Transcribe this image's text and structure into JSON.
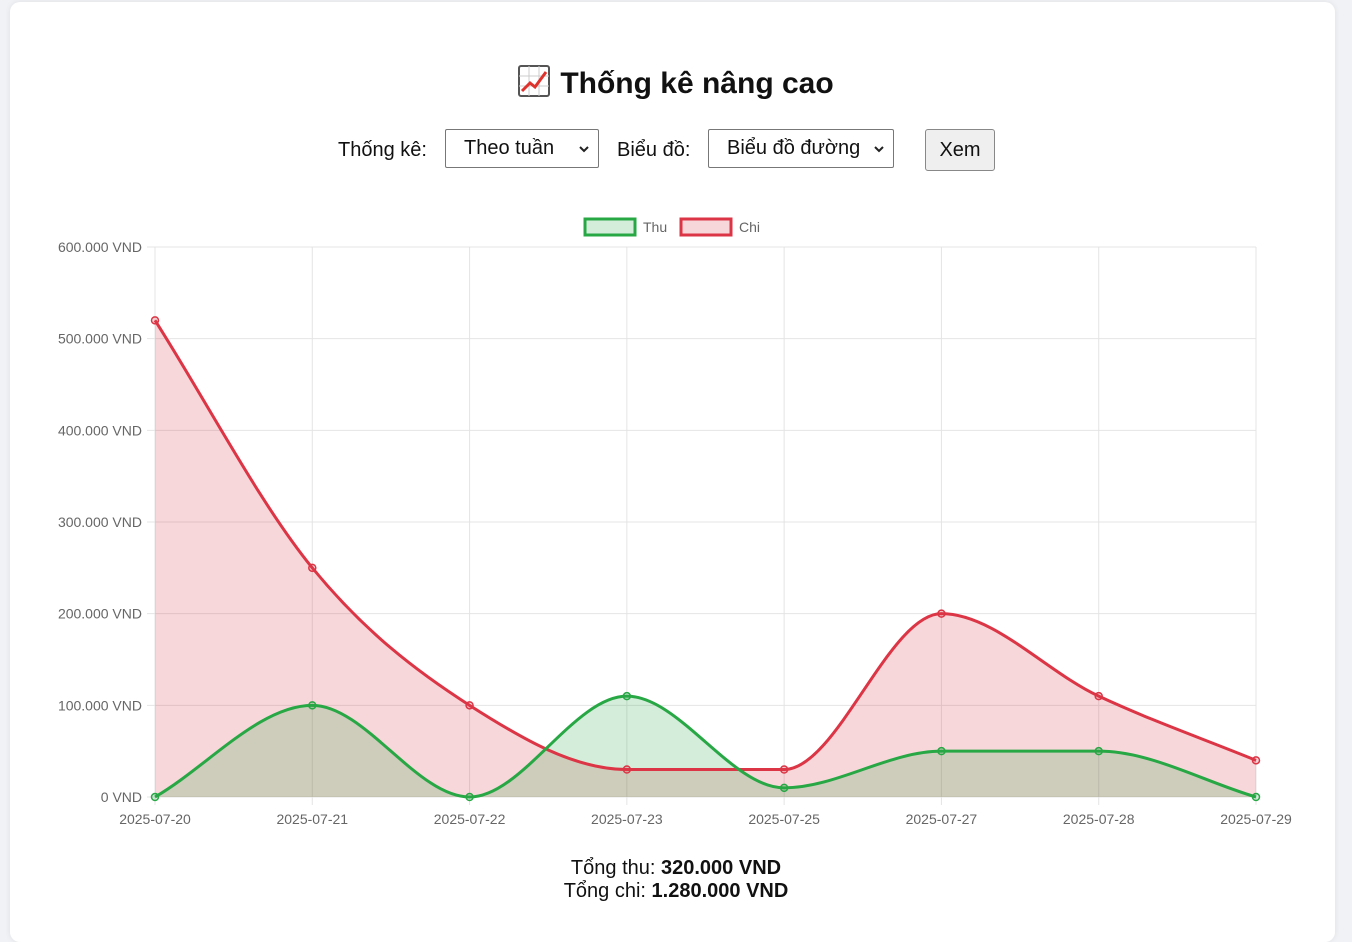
{
  "page": {
    "title": "Thống kê nâng cao",
    "title_icon": "chart-increasing-icon"
  },
  "controls": {
    "stat_label": "Thống kê:",
    "stat_value": "Theo tuần",
    "chart_label": "Biểu đồ:",
    "chart_value": "Biểu đồ đường",
    "view_button": "Xem"
  },
  "totals": {
    "income_label": "Tổng thu:",
    "income_value": "320.000 VND",
    "expense_label": "Tổng chi:",
    "expense_value": "1.280.000 VND"
  },
  "chart_data": {
    "type": "area",
    "categories": [
      "2025-07-20",
      "2025-07-21",
      "2025-07-22",
      "2025-07-23",
      "2025-07-25",
      "2025-07-27",
      "2025-07-28",
      "2025-07-29"
    ],
    "series": [
      {
        "name": "Thu",
        "values": [
          0,
          100000,
          0,
          110000,
          10000,
          50000,
          50000,
          0
        ],
        "color": "#28a745",
        "fill": "rgba(40,167,69,0.2)"
      },
      {
        "name": "Chi",
        "values": [
          520000,
          250000,
          100000,
          30000,
          30000,
          200000,
          110000,
          40000
        ],
        "color": "#dc3545",
        "fill": "rgba(220,53,69,0.2)"
      }
    ],
    "ylim": [
      0,
      600000
    ],
    "yticks": [
      0,
      100000,
      200000,
      300000,
      400000,
      500000,
      600000
    ],
    "ytick_labels": [
      "0 VND",
      "100.000 VND",
      "200.000 VND",
      "300.000 VND",
      "400.000 VND",
      "500.000 VND",
      "600.000 VND"
    ],
    "grid": true,
    "legend_position": "top",
    "smooth": true
  }
}
